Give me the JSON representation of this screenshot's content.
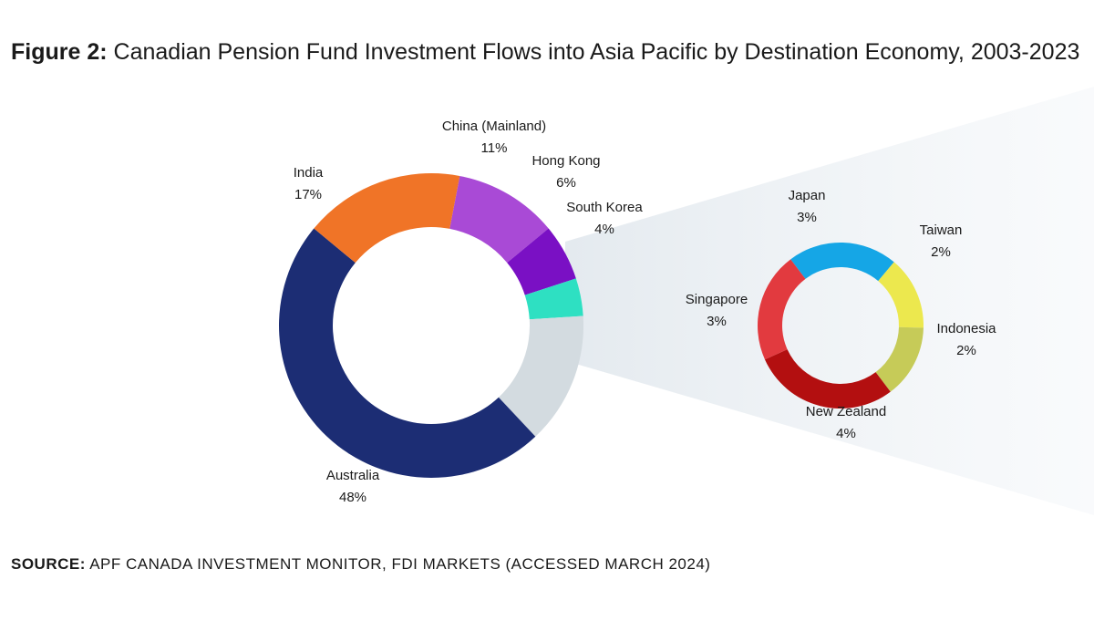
{
  "title": {
    "lead": "Figure 2:",
    "text": " Canadian Pension Fund Investment Flows into Asia Pacific by Destination Economy, 2003-2023"
  },
  "source": {
    "lead": "SOURCE:",
    "text": " APF CANADA INVESTMENT MONITOR, FDI MARKETS (ACCESSED MARCH 2024)"
  },
  "chart_data": [
    {
      "type": "pie",
      "style": "donut",
      "categories": [
        "China (Mainland)",
        "Hong Kong",
        "South Korea",
        "",
        "Australia",
        "India"
      ],
      "values": [
        11,
        6,
        4,
        14,
        48,
        17
      ],
      "labels": [
        "11%",
        "6%",
        "4%",
        "",
        "48%",
        "17%"
      ],
      "colors": [
        "#a94ad6",
        "#7a10c4",
        "#2ee0c2",
        "#d3dbe0",
        "#1c2d74",
        "#f07427"
      ]
    },
    {
      "type": "pie",
      "style": "donut",
      "categories": [
        "Japan",
        "Taiwan",
        "Indonesia",
        "New Zealand",
        "Singapore"
      ],
      "values": [
        3,
        2,
        2,
        4,
        3
      ],
      "labels": [
        "3%",
        "2%",
        "2%",
        "4%",
        "3%"
      ],
      "colors": [
        "#15a6e6",
        "#ece84e",
        "#c6cb58",
        "#b30f10",
        "#e23a3f"
      ]
    }
  ]
}
